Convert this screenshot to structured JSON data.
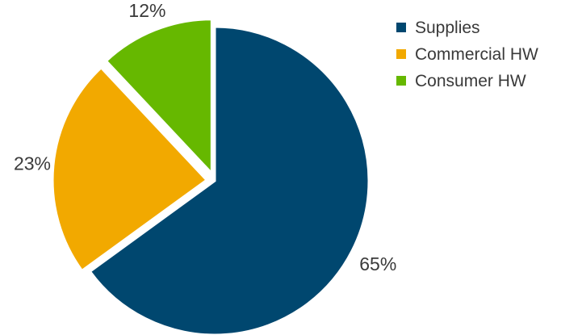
{
  "chart_data": {
    "type": "pie",
    "title": "",
    "categories": [
      "Supplies",
      "Commercial HW",
      "Consumer HW"
    ],
    "values": [
      65,
      23,
      12
    ],
    "value_labels": [
      "65%",
      "23%",
      "12%"
    ],
    "colors": [
      "#00476f",
      "#f2a900",
      "#66b800"
    ],
    "start_angle_degrees": 0,
    "direction": "clockwise",
    "exploded_slices": [
      "Commercial HW",
      "Consumer HW"
    ],
    "legend": {
      "position": "top-right",
      "entries": [
        "Supplies",
        "Commercial HW",
        "Consumer HW"
      ]
    }
  }
}
